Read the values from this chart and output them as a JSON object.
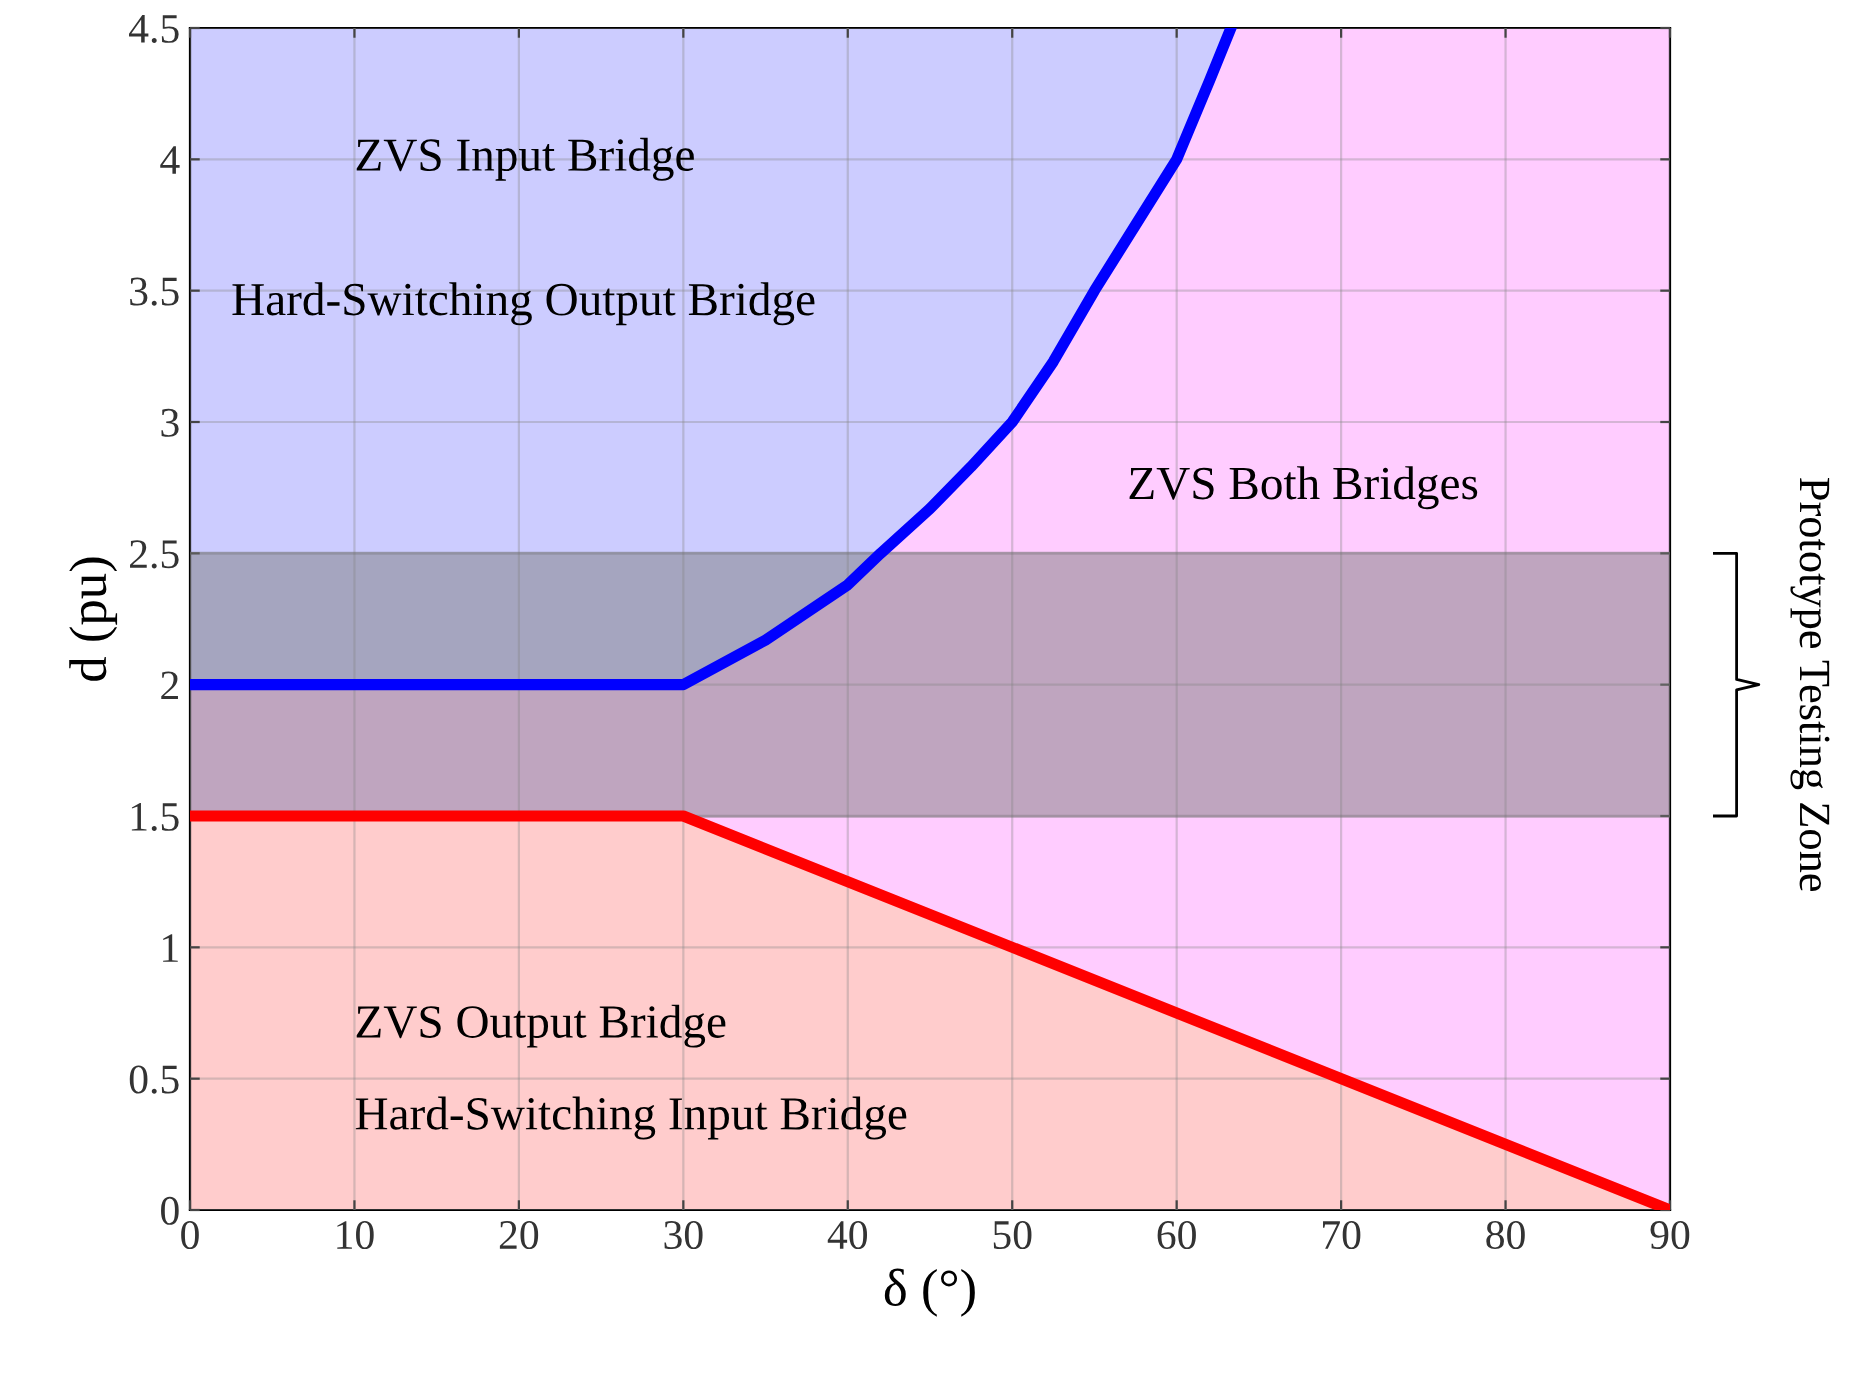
{
  "chart_data": {
    "type": "line",
    "xlabel": "δ (°)",
    "ylabel": "d (pu)",
    "xlim": [
      0,
      90
    ],
    "ylim": [
      0,
      4.5
    ],
    "xticks": [
      0,
      10,
      20,
      30,
      40,
      50,
      60,
      70,
      80,
      90
    ],
    "yticks": [
      0,
      0.5,
      1,
      1.5,
      2,
      2.5,
      3,
      3.5,
      4,
      4.5
    ],
    "grid": true,
    "series": [
      {
        "color": "#0000ff",
        "x": [
          0,
          30,
          35,
          40,
          42,
          45,
          47.5,
          50,
          52.5,
          55,
          57.5,
          60,
          62,
          63.3
        ],
        "values": [
          2,
          2,
          2.17,
          2.38,
          2.5,
          2.67,
          2.83,
          3.0,
          3.23,
          3.5,
          3.75,
          4.0,
          4.3,
          4.5
        ],
        "lower": [
          2,
          2,
          2.17,
          2.38,
          2.5,
          2.67,
          2.83,
          3.0,
          3.23,
          3.5,
          3.75,
          4.0,
          4.3,
          4.5
        ],
        "upper": [
          4.5,
          4.5,
          4.5,
          4.5,
          4.5,
          4.5,
          4.5,
          4.5,
          4.5,
          4.5,
          4.5,
          4.5,
          4.5,
          4.5
        ]
      },
      {
        "type": "area",
        "color": "#ff0000",
        "x": [
          0,
          30,
          90
        ],
        "values": [
          1.5,
          1.5,
          0
        ]
      }
    ],
    "bands": [
      {
        "axis": "y",
        "from": 0,
        "to": 4.5,
        "label": null,
        "color": "#ffccff"
      },
      {
        "axis": "y",
        "from": 1.5,
        "to": 2.5,
        "label": "Prototype Testing Zone",
        "color": "#808080"
      }
    ],
    "annotations": [
      "ZVS Input Bridge",
      "Hard-Switching Output Bridge",
      "ZVS Both Bridges",
      "ZVS Output Bridge",
      "Hard-Switching Input Bridge"
    ]
  }
}
